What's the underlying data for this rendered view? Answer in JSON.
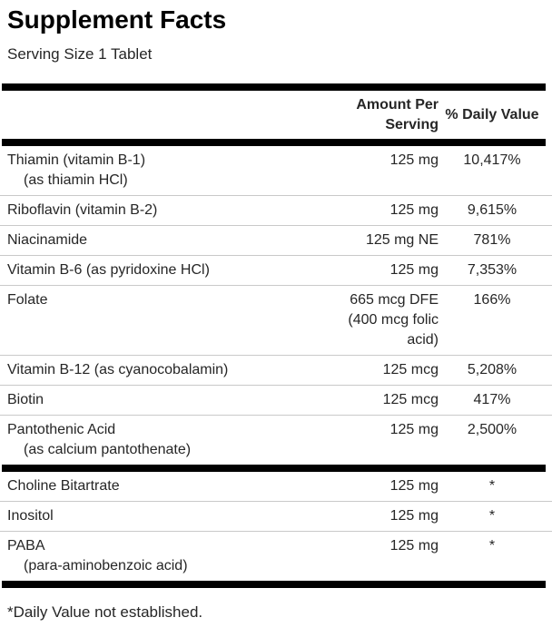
{
  "label": {
    "title": "Supplement Facts",
    "serving_size": "Serving Size 1 Tablet",
    "columns": {
      "amount": "Amount Per Serving",
      "daily_value": "% Daily Value"
    },
    "rows_main": [
      {
        "name": "Thiamin (vitamin B-1)",
        "sub": "(as thiamin HCl)",
        "amount": "125 mg",
        "dv": "10,417%"
      },
      {
        "name": "Riboflavin (vitamin B-2)",
        "sub": "",
        "amount": "125 mg",
        "dv": "9,615%"
      },
      {
        "name": "Niacinamide",
        "sub": "",
        "amount": "125 mg NE",
        "dv": "781%"
      },
      {
        "name": "Vitamin B-6 (as pyridoxine HCl)",
        "sub": "",
        "amount": "125 mg",
        "dv": "7,353%"
      },
      {
        "name": "Folate",
        "sub": "",
        "amount": "665 mcg DFE (400 mcg folic acid)",
        "dv": "166%"
      },
      {
        "name": "Vitamin B-12 (as cyanocobalamin)",
        "sub": "",
        "amount": "125 mcg",
        "dv": "5,208%"
      },
      {
        "name": "Biotin",
        "sub": "",
        "amount": "125 mcg",
        "dv": "417%"
      },
      {
        "name": "Pantothenic Acid",
        "sub": "(as calcium pantothenate)",
        "amount": "125 mg",
        "dv": "2,500%"
      }
    ],
    "rows_secondary": [
      {
        "name": "Choline Bitartrate",
        "sub": "",
        "amount": "125 mg",
        "dv": "*"
      },
      {
        "name": "Inositol",
        "sub": "",
        "amount": "125 mg",
        "dv": "*"
      },
      {
        "name": "PABA",
        "sub": "(para-aminobenzoic acid)",
        "amount": "125 mg",
        "dv": "*"
      }
    ],
    "footnote": "*Daily Value not established.",
    "colors": {
      "bar": "#000000",
      "separator": "#c9c9c9",
      "text": "#262626"
    }
  }
}
